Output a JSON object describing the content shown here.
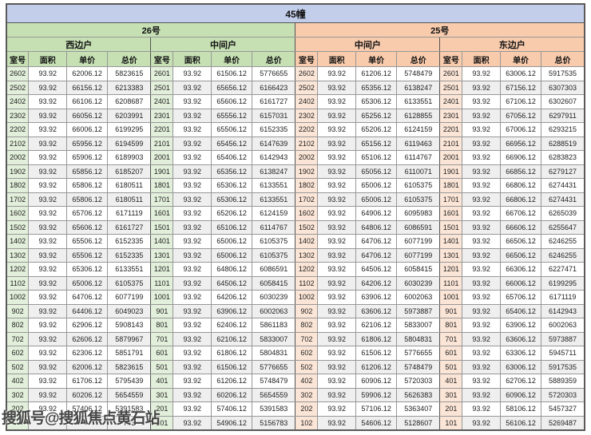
{
  "title": "45幢",
  "watermark": "搜狐号@搜狐焦点黄石站",
  "colors": {
    "title_bg": "#c3cfea",
    "green_header": "#c6e0b4",
    "green_light": "#e2efda",
    "orange_header": "#f8cbad",
    "orange_light": "#fbe5d6",
    "row_alt": "#efefef",
    "border": "#979797"
  },
  "table": {
    "buildings": [
      {
        "label": "26号",
        "units": [
          "西边户",
          "中间户"
        ]
      },
      {
        "label": "25号",
        "units": [
          "中间户",
          "东边户"
        ]
      }
    ],
    "column_headers": [
      "室号",
      "面积",
      "单价",
      "总价"
    ],
    "rows": [
      [
        "2602",
        "93.92",
        "62006.12",
        "5823615",
        "2601",
        "93.92",
        "61506.12",
        "5776655",
        "2602",
        "93.92",
        "61206.12",
        "5748479",
        "2601",
        "93.92",
        "63006.12",
        "5917535"
      ],
      [
        "2502",
        "93.92",
        "66156.12",
        "6213383",
        "2501",
        "93.92",
        "65656.12",
        "6166423",
        "2502",
        "93.92",
        "65356.12",
        "6138247",
        "2501",
        "93.92",
        "67156.12",
        "6307303"
      ],
      [
        "2402",
        "93.92",
        "66106.12",
        "6208687",
        "2401",
        "93.92",
        "65606.12",
        "6161727",
        "2402",
        "93.92",
        "65306.12",
        "6133551",
        "2401",
        "93.92",
        "67106.12",
        "6302607"
      ],
      [
        "2302",
        "93.92",
        "66056.12",
        "6203991",
        "2301",
        "93.92",
        "65556.12",
        "6157031",
        "2302",
        "93.92",
        "65256.12",
        "6128855",
        "2301",
        "93.92",
        "67056.12",
        "6297911"
      ],
      [
        "2202",
        "93.92",
        "66006.12",
        "6199295",
        "2201",
        "93.92",
        "65506.12",
        "6152335",
        "2202",
        "93.92",
        "65206.12",
        "6124159",
        "2201",
        "93.92",
        "67006.12",
        "6293215"
      ],
      [
        "2102",
        "93.92",
        "65956.12",
        "6194599",
        "2101",
        "93.92",
        "65456.12",
        "6147639",
        "2102",
        "93.92",
        "65156.12",
        "6119463",
        "2101",
        "93.92",
        "66956.12",
        "6288519"
      ],
      [
        "2002",
        "93.92",
        "65906.12",
        "6189903",
        "2001",
        "93.92",
        "65406.12",
        "6142943",
        "2002",
        "93.92",
        "65106.12",
        "6114767",
        "2001",
        "93.92",
        "66906.12",
        "6283823"
      ],
      [
        "1902",
        "93.92",
        "65856.12",
        "6185207",
        "1901",
        "93.92",
        "65356.12",
        "6138247",
        "1902",
        "93.92",
        "65056.12",
        "6110071",
        "1901",
        "93.92",
        "66856.12",
        "6279127"
      ],
      [
        "1802",
        "93.92",
        "65806.12",
        "6180511",
        "1801",
        "93.92",
        "65306.12",
        "6133551",
        "1802",
        "93.92",
        "65006.12",
        "6105375",
        "1801",
        "93.92",
        "66806.12",
        "6274431"
      ],
      [
        "1702",
        "93.92",
        "65806.12",
        "6180511",
        "1701",
        "93.92",
        "65306.12",
        "6133551",
        "1702",
        "93.92",
        "65006.12",
        "6105375",
        "1701",
        "93.92",
        "66806.12",
        "6274431"
      ],
      [
        "1602",
        "93.92",
        "65706.12",
        "6171119",
        "1601",
        "93.92",
        "65206.12",
        "6124159",
        "1602",
        "93.92",
        "64906.12",
        "6095983",
        "1601",
        "93.92",
        "66706.12",
        "6265039"
      ],
      [
        "1502",
        "93.92",
        "65606.12",
        "6161727",
        "1501",
        "93.92",
        "65106.12",
        "6114767",
        "1502",
        "93.92",
        "64806.12",
        "6086591",
        "1501",
        "93.92",
        "66606.12",
        "6255647"
      ],
      [
        "1402",
        "93.92",
        "65506.12",
        "6152335",
        "1401",
        "93.92",
        "65006.12",
        "6105375",
        "1402",
        "93.92",
        "64706.12",
        "6077199",
        "1401",
        "93.92",
        "66506.12",
        "6246255"
      ],
      [
        "1302",
        "93.92",
        "65506.12",
        "6152335",
        "1301",
        "93.92",
        "65006.12",
        "6105375",
        "1302",
        "93.92",
        "64706.12",
        "6077199",
        "1301",
        "93.92",
        "66506.12",
        "6246255"
      ],
      [
        "1202",
        "93.92",
        "65306.12",
        "6133551",
        "1201",
        "93.92",
        "64806.12",
        "6086591",
        "1202",
        "93.92",
        "64506.12",
        "6058415",
        "1201",
        "93.92",
        "66306.12",
        "6227471"
      ],
      [
        "1102",
        "93.92",
        "65006.12",
        "6105375",
        "1101",
        "93.92",
        "64506.12",
        "6058415",
        "1102",
        "93.92",
        "64206.12",
        "6030239",
        "1101",
        "93.92",
        "66006.12",
        "6199295"
      ],
      [
        "1002",
        "93.92",
        "64706.12",
        "6077199",
        "1001",
        "93.92",
        "64206.12",
        "6030239",
        "1002",
        "93.92",
        "63906.12",
        "6002063",
        "1001",
        "93.92",
        "65706.12",
        "6171119"
      ],
      [
        "902",
        "93.92",
        "64406.12",
        "6049023",
        "901",
        "93.92",
        "63906.12",
        "6002063",
        "902",
        "93.92",
        "63606.12",
        "5973887",
        "901",
        "93.92",
        "65406.12",
        "6142943"
      ],
      [
        "802",
        "93.92",
        "62906.12",
        "5908143",
        "801",
        "93.92",
        "62406.12",
        "5861183",
        "802",
        "93.92",
        "62106.12",
        "5833007",
        "801",
        "93.92",
        "63906.12",
        "6002063"
      ],
      [
        "702",
        "93.92",
        "62606.12",
        "5879967",
        "701",
        "93.92",
        "62106.12",
        "5833007",
        "702",
        "93.92",
        "61806.12",
        "5804831",
        "701",
        "93.92",
        "63606.12",
        "5973887"
      ],
      [
        "602",
        "93.92",
        "62306.12",
        "5851791",
        "601",
        "93.92",
        "61806.12",
        "5804831",
        "602",
        "93.92",
        "61506.12",
        "5776655",
        "601",
        "93.92",
        "63306.12",
        "5945711"
      ],
      [
        "502",
        "93.92",
        "62006.12",
        "5823615",
        "501",
        "93.92",
        "61506.12",
        "5776655",
        "502",
        "93.92",
        "61206.12",
        "5748479",
        "501",
        "93.92",
        "63006.12",
        "5917535"
      ],
      [
        "402",
        "93.92",
        "61706.12",
        "5795439",
        "401",
        "93.92",
        "61206.12",
        "5748479",
        "402",
        "93.92",
        "60906.12",
        "5720303",
        "401",
        "93.92",
        "62706.12",
        "5889359"
      ],
      [
        "302",
        "93.92",
        "60206.12",
        "5654559",
        "301",
        "93.92",
        "60206.12",
        "5654559",
        "302",
        "93.92",
        "59906.12",
        "5626383",
        "301",
        "93.92",
        "60906.12",
        "5720303"
      ],
      [
        "202",
        "93.92",
        "57406.12",
        "5391583",
        "201",
        "93.92",
        "57406.12",
        "5391583",
        "202",
        "93.92",
        "57106.12",
        "5363407",
        "201",
        "93.92",
        "58106.12",
        "5457327"
      ],
      [
        "",
        "",
        "",
        "743",
        "101",
        "93.92",
        "54906.12",
        "5156783",
        "102",
        "93.92",
        "54606.12",
        "5128607",
        "101",
        "93.92",
        "56106.12",
        "5269487"
      ]
    ]
  }
}
